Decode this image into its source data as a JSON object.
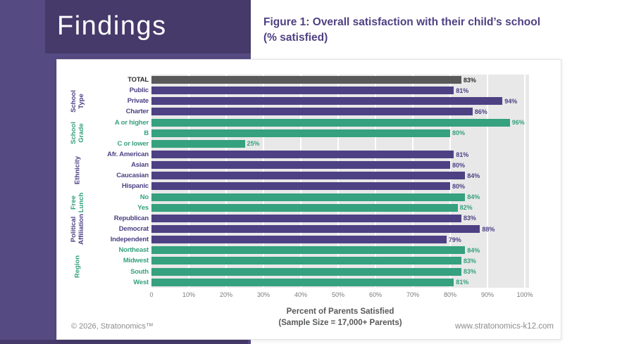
{
  "slide": {
    "section_label": "Findings",
    "figure_title": "Figure 1: Overall satisfaction with their child’s school (% satisfied)",
    "footer_left": "© 2026, Stratonomics™",
    "footer_right": "www.stratonomics-k12.com"
  },
  "colors": {
    "background_purple": "#564a82",
    "dark_purple": "#453a6a",
    "bar_purple": "#4d4184",
    "bar_green": "#35a17e",
    "bar_gray": "#595959",
    "total_label": "#2b2b2b",
    "plot_bg": "#e8e8e8"
  },
  "chart_data": {
    "type": "bar",
    "orientation": "horizontal",
    "title": "Figure 1: Overall satisfaction with their child’s school (% satisfied)",
    "xlabel_line1": "Percent of Parents Satisfied",
    "xlabel_line2": "(Sample Size = 17,000+ Parents)",
    "xlim": [
      0,
      100
    ],
    "value_suffix": "%",
    "grid": true,
    "x_ticks": [
      "0",
      "10%",
      "20%",
      "30%",
      "40%",
      "50%",
      "60%",
      "70%",
      "80%",
      "90%",
      "100%"
    ],
    "groups": [
      {
        "name": "",
        "color": "gray",
        "rows": [
          {
            "label": "TOTAL",
            "value": 83
          }
        ]
      },
      {
        "name": "School\nType",
        "color": "purple",
        "rows": [
          {
            "label": "Public",
            "value": 81
          },
          {
            "label": "Private",
            "value": 94
          },
          {
            "label": "Charter",
            "value": 86
          }
        ]
      },
      {
        "name": "School\nGrade",
        "color": "green",
        "rows": [
          {
            "label": "A or higher",
            "value": 96
          },
          {
            "label": "B",
            "value": 80
          },
          {
            "label": "C or lower",
            "value": 25
          }
        ]
      },
      {
        "name": "Ethnicity",
        "color": "purple",
        "rows": [
          {
            "label": "Afr. American",
            "value": 81
          },
          {
            "label": "Asian",
            "value": 80
          },
          {
            "label": "Caucasian",
            "value": 84
          },
          {
            "label": "Hispanic",
            "value": 80
          }
        ]
      },
      {
        "name": "Free\nLunch",
        "color": "green",
        "rows": [
          {
            "label": "No",
            "value": 84
          },
          {
            "label": "Yes",
            "value": 82
          }
        ]
      },
      {
        "name": "Political\nAffiliation",
        "color": "purple",
        "rows": [
          {
            "label": "Republican",
            "value": 83
          },
          {
            "label": "Democrat",
            "value": 88
          },
          {
            "label": "Independent",
            "value": 79
          }
        ]
      },
      {
        "name": "Region",
        "color": "green",
        "rows": [
          {
            "label": "Northeast",
            "value": 84
          },
          {
            "label": "Midwest",
            "value": 83
          },
          {
            "label": "South",
            "value": 83
          },
          {
            "label": "West",
            "value": 81
          }
        ]
      }
    ]
  }
}
